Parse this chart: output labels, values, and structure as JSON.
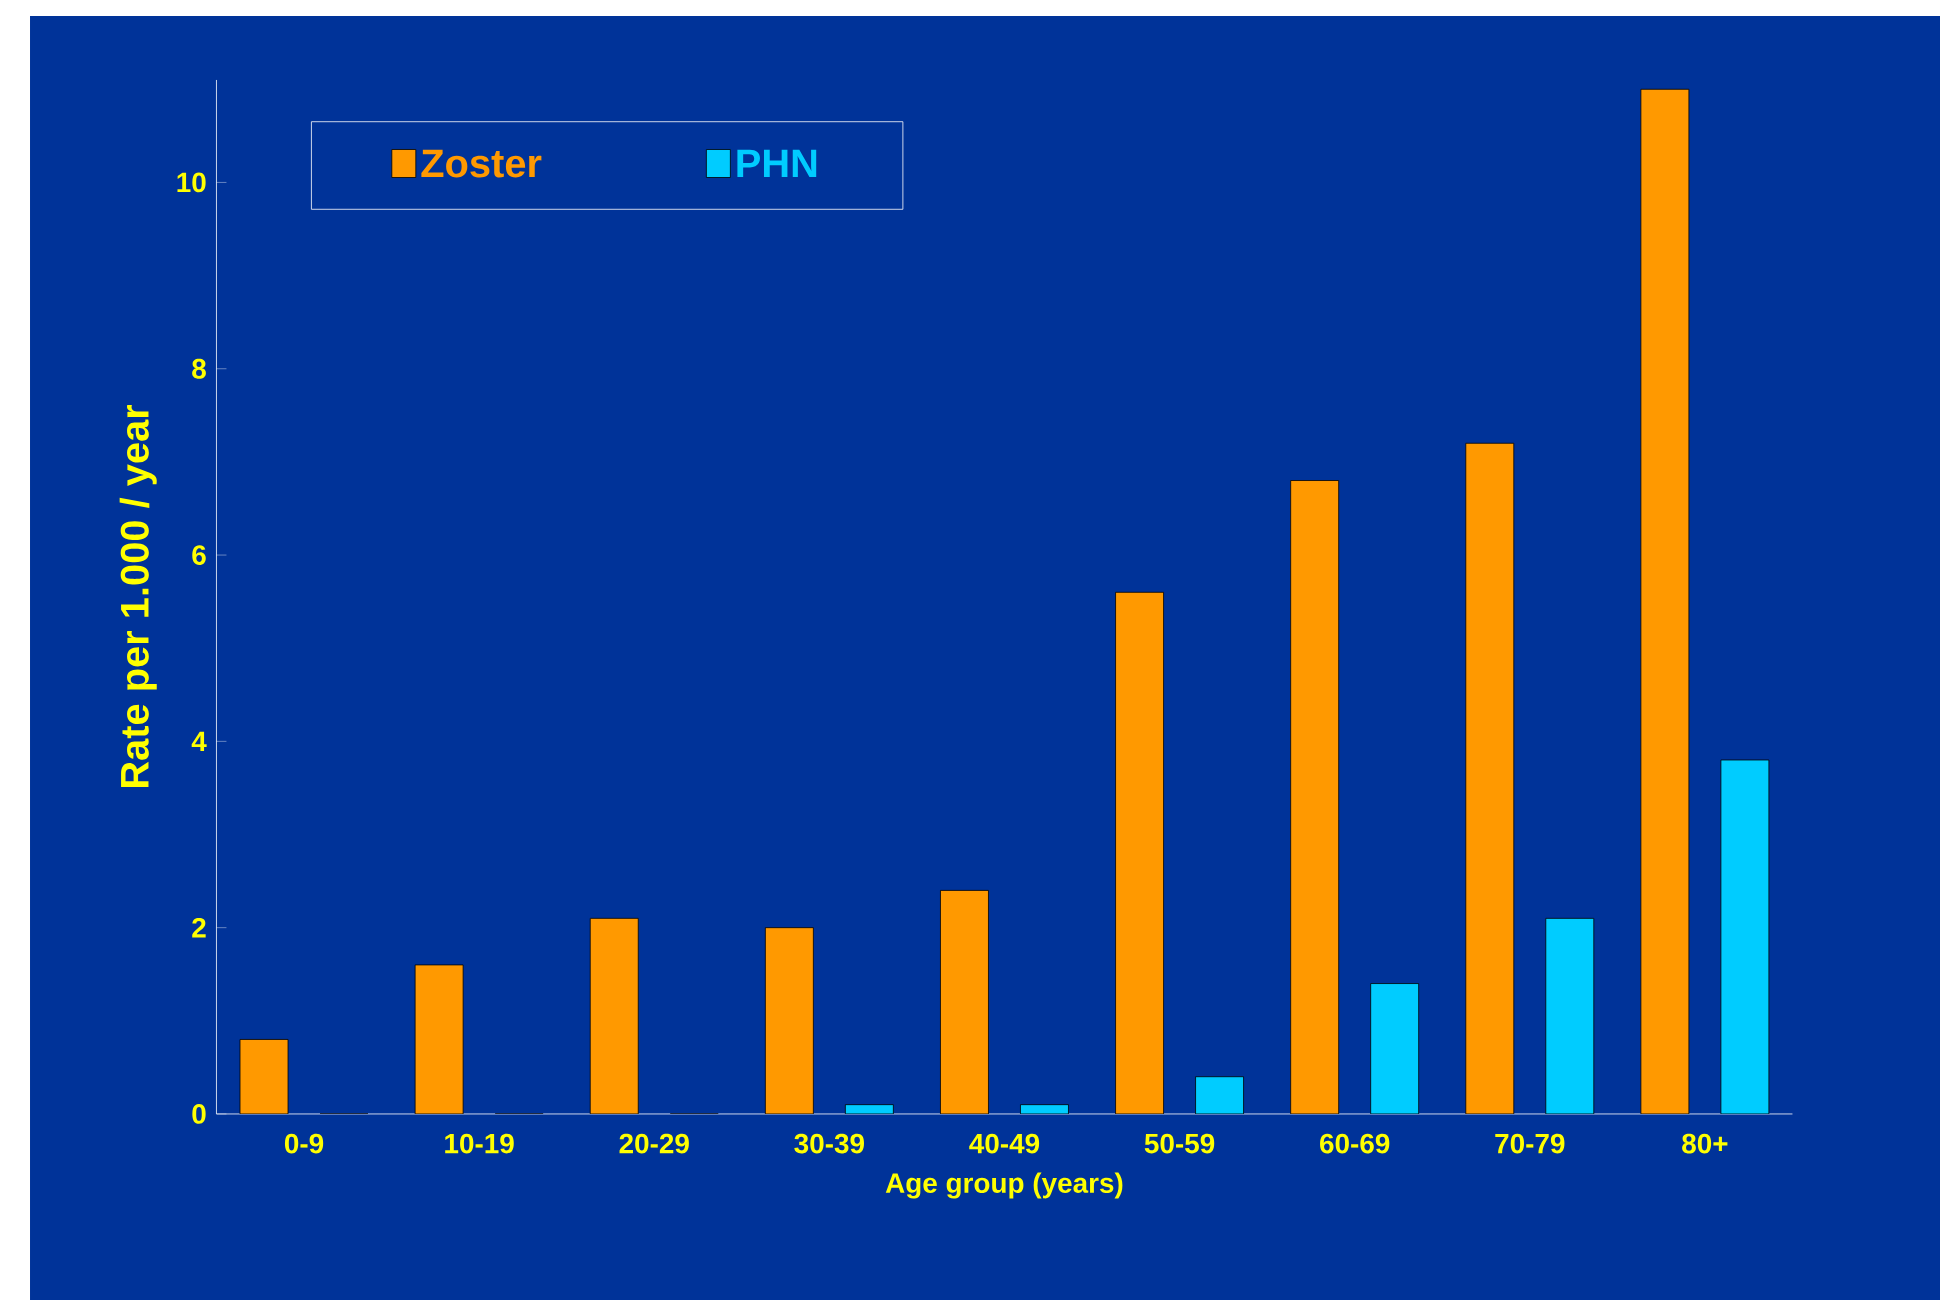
{
  "chart_data": {
    "type": "bar",
    "xlabel": "Age group (years)",
    "ylabel": "Rate per 1.000 / year",
    "categories": [
      "0-9",
      "10-19",
      "20-29",
      "30-39",
      "40-49",
      "50-59",
      "60-69",
      "70-79",
      "80+"
    ],
    "series": [
      {
        "name": "Zoster",
        "color": "#ff9900",
        "values": [
          0.8,
          1.6,
          2.1,
          2.0,
          2.4,
          5.6,
          6.8,
          7.2,
          11.0
        ]
      },
      {
        "name": "PHN",
        "color": "#00ccff",
        "values": [
          0,
          0,
          0,
          0.1,
          0.1,
          0.4,
          1.4,
          2.1,
          3.8
        ]
      }
    ],
    "ylim": [
      0,
      11.1
    ],
    "yticks": [
      0,
      2,
      4,
      6,
      8,
      10
    ],
    "grid": false,
    "legend": "top left"
  }
}
